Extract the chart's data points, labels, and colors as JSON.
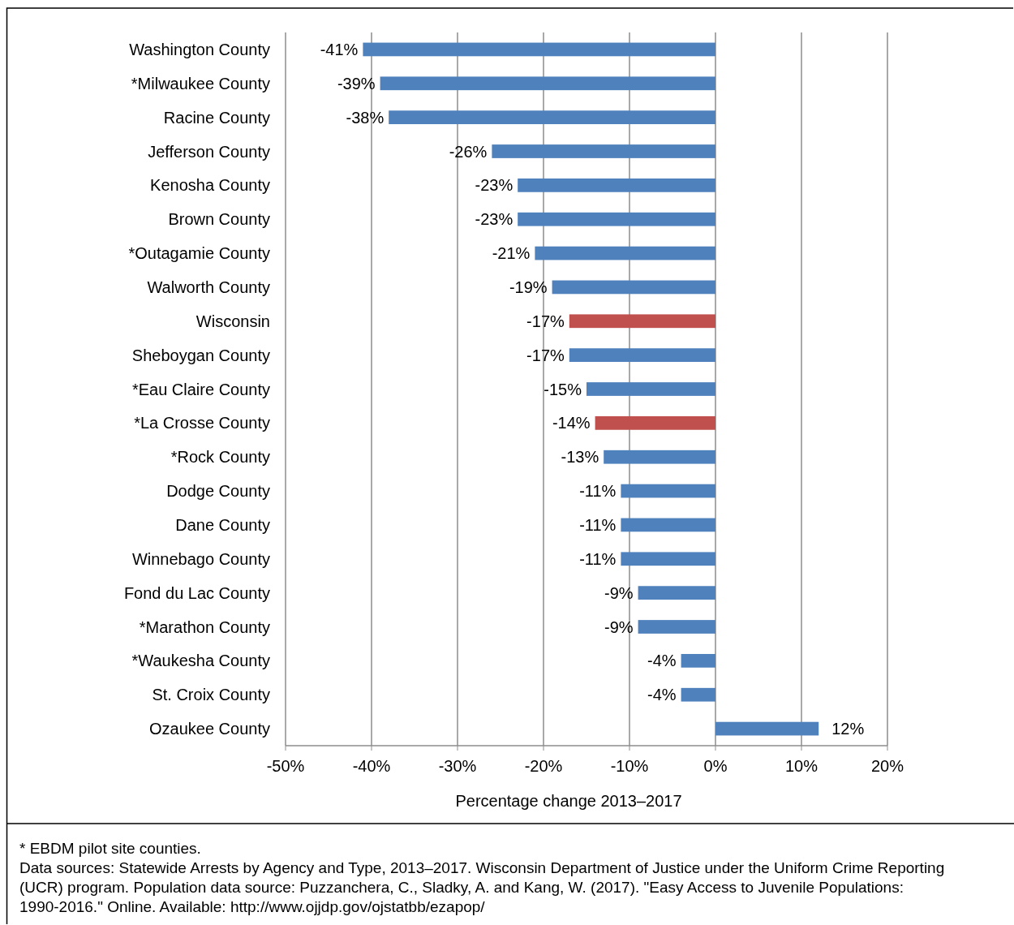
{
  "chart_data": {
    "type": "bar",
    "orientation": "horizontal",
    "xlabel": "Percentage change 2013–2017",
    "categories": [
      "Washington County",
      "*Milwaukee County",
      "Racine County",
      "Jefferson County",
      "Kenosha County",
      "Brown County",
      "*Outagamie County",
      "Walworth County",
      "Wisconsin",
      "Sheboygan County",
      "*Eau Claire County",
      "*La Crosse County",
      "*Rock County",
      "Dodge County",
      "Dane County",
      "Winnebago County",
      "Fond du Lac County",
      "*Marathon County",
      "*Waukesha County",
      "St. Croix County",
      "Ozaukee County"
    ],
    "values": [
      -41,
      -39,
      -38,
      -26,
      -23,
      -23,
      -21,
      -19,
      -17,
      -17,
      -15,
      -14,
      -13,
      -11,
      -11,
      -11,
      -9,
      -9,
      -4,
      -4,
      12
    ],
    "colors": [
      "#4f81bd",
      "#4f81bd",
      "#4f81bd",
      "#4f81bd",
      "#4f81bd",
      "#4f81bd",
      "#4f81bd",
      "#4f81bd",
      "#c0504d",
      "#4f81bd",
      "#4f81bd",
      "#c0504d",
      "#4f81bd",
      "#4f81bd",
      "#4f81bd",
      "#4f81bd",
      "#4f81bd",
      "#4f81bd",
      "#4f81bd",
      "#4f81bd",
      "#4f81bd"
    ],
    "xlim": [
      -50,
      20
    ],
    "xticks": [
      {
        "value": -50,
        "label": "-50%"
      },
      {
        "value": -40,
        "label": "-40%"
      },
      {
        "value": -30,
        "label": "-30%"
      },
      {
        "value": -20,
        "label": "-20%"
      },
      {
        "value": -10,
        "label": "-10%"
      },
      {
        "value": 0,
        "label": "0%"
      },
      {
        "value": 10,
        "label": "10%"
      },
      {
        "value": 20,
        "label": "20%"
      }
    ],
    "grid": "x",
    "value_labels": [
      "-41%",
      "-39%",
      "-38%",
      "-26%",
      "-23%",
      "-23%",
      "-21%",
      "-19%",
      "-17%",
      "-17%",
      "-15%",
      "-14%",
      "-13%",
      "-11%",
      "-11%",
      "-11%",
      "-9%",
      "-9%",
      "-4%",
      "-4%",
      "12%"
    ],
    "annotations": [
      "* EBDM pilot site counties.",
      "Data sources: Statewide Arrests by Agency and Type, 2013–2017. Wisconsin Department of Justice under the Uniform Crime Reporting (UCR) program. Population data source: Puzzanchera, C., Sladky, A. and Kang, W. (2017). \"Easy Access to Juvenile Populations: 1990-2016.\" Online. Available: http://www.ojjdp.gov/ojstatbb/ezapop/"
    ]
  }
}
